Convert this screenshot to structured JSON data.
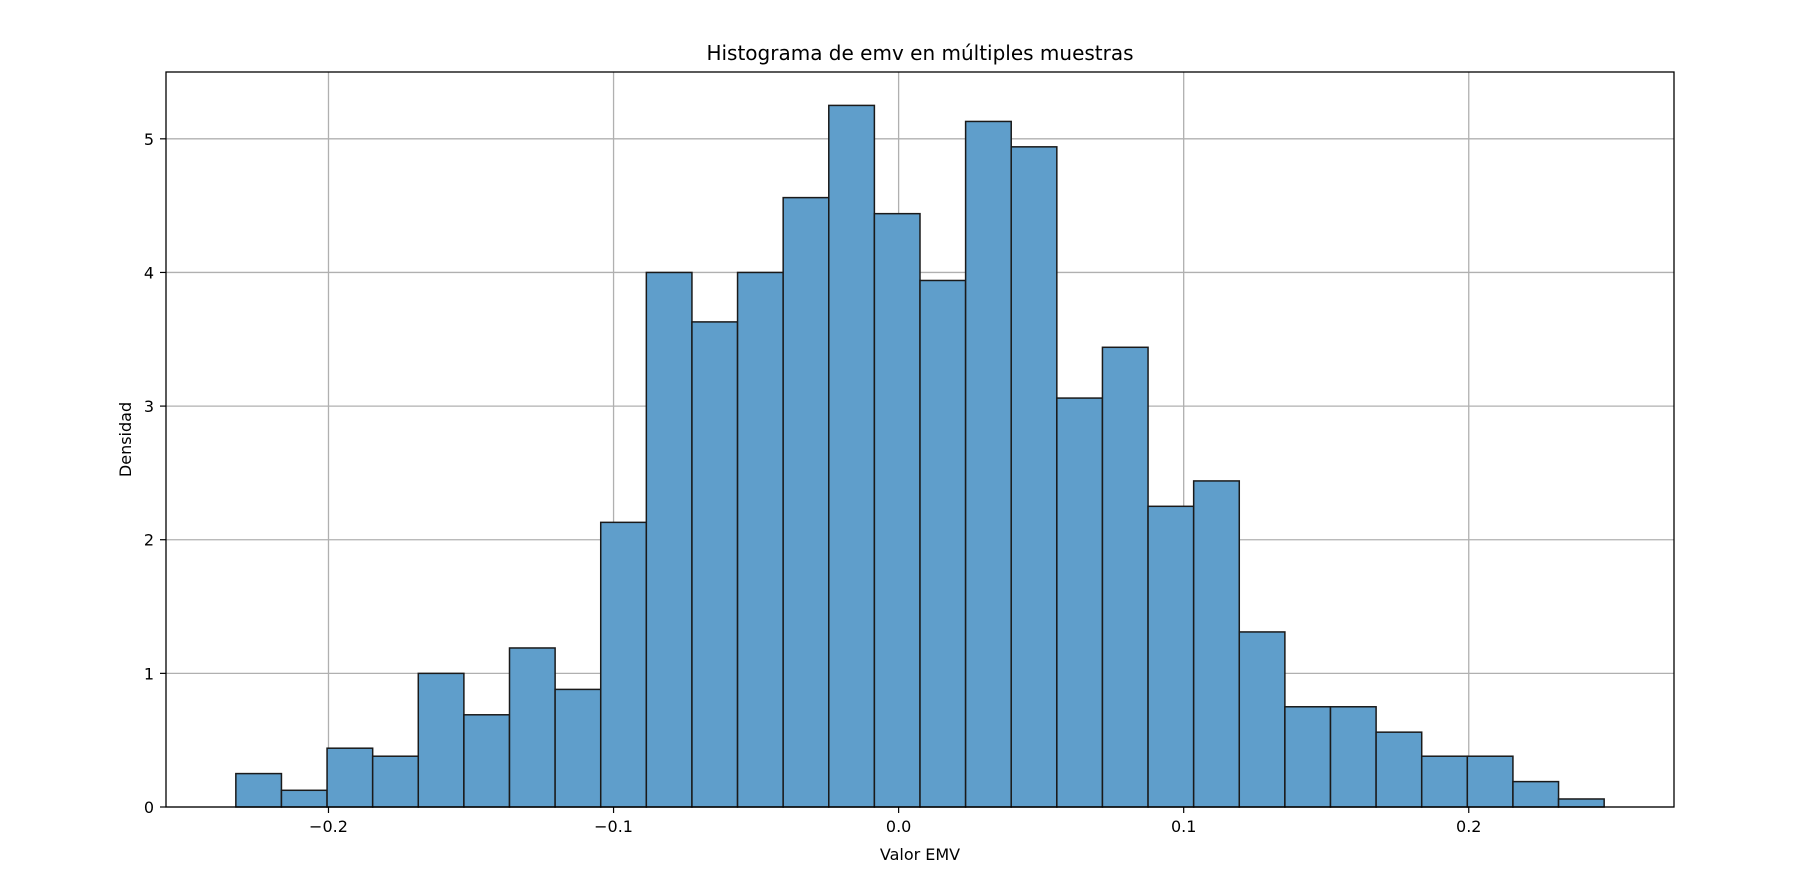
{
  "chart_data": {
    "type": "bar",
    "title": "Histograma de emv en múltiples muestras",
    "xlabel": "Valor EMV",
    "ylabel": "Densidad",
    "bin_edges": [
      -0.2325,
      -0.2165,
      -0.2005,
      -0.1845,
      -0.1685,
      -0.1525,
      -0.1365,
      -0.1205,
      -0.1045,
      -0.0885,
      -0.0725,
      -0.0565,
      -0.0405,
      -0.0245,
      -0.0085,
      0.0075,
      0.0235,
      0.0395,
      0.0555,
      0.0715,
      0.0875,
      0.1035,
      0.1195,
      0.1355,
      0.1515,
      0.1675,
      0.1835,
      0.1995,
      0.2155,
      0.2315,
      0.2475
    ],
    "values": [
      0.25,
      0.125,
      0.44,
      0.38,
      1.0,
      0.69,
      1.19,
      0.88,
      2.13,
      4.0,
      3.63,
      4.0,
      4.56,
      5.25,
      4.44,
      3.94,
      5.13,
      4.94,
      3.06,
      3.44,
      2.25,
      2.44,
      1.31,
      0.75,
      0.75,
      0.56,
      0.38,
      0.38,
      0.19,
      0.06
    ],
    "xlim": [
      -0.257,
      0.272
    ],
    "ylim": [
      0,
      5.5
    ],
    "xticks": [
      -0.2,
      -0.1,
      0.0,
      0.1,
      0.2
    ],
    "xtick_labels": [
      "−0.2",
      "−0.1",
      "0.0",
      "0.1",
      "0.2"
    ],
    "yticks": [
      0,
      1,
      2,
      3,
      4,
      5
    ],
    "ytick_labels": [
      "0",
      "1",
      "2",
      "3",
      "4",
      "5"
    ],
    "grid": true,
    "colors": {
      "bar_fill": "#5f9ecb",
      "bar_edge": "#1a1a1a",
      "grid": "#b0b0b0",
      "axes": "#000000"
    }
  }
}
